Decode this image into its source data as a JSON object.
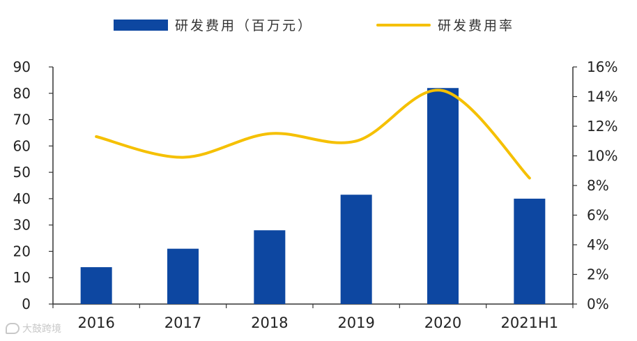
{
  "legend": {
    "bar_label": "研发费用（百万元）",
    "line_label": "研发费用率"
  },
  "watermark": {
    "text": "大鼓跨境",
    "icon": "speech-bubble-icon"
  },
  "colors": {
    "bar": "#0d47a1",
    "line": "#f5c000",
    "axis": "#333333"
  },
  "chart_data": {
    "type": "bar",
    "categories": [
      "2016",
      "2017",
      "2018",
      "2019",
      "2020",
      "2021H1"
    ],
    "series": [
      {
        "name": "研发费用（百万元）",
        "type": "bar",
        "axis": "left",
        "values": [
          14,
          21,
          28,
          41.5,
          82,
          40
        ]
      },
      {
        "name": "研发费用率",
        "type": "line",
        "axis": "right",
        "unit": "%",
        "values": [
          11.3,
          9.9,
          11.5,
          11.0,
          14.4,
          8.5
        ]
      }
    ],
    "y_left": {
      "ylim": [
        0,
        90
      ],
      "ticks": [
        "0",
        "10",
        "20",
        "30",
        "40",
        "50",
        "60",
        "70",
        "80",
        "90"
      ]
    },
    "y_right": {
      "ylim": [
        0,
        16
      ],
      "ticks": [
        "0%",
        "2%",
        "4%",
        "6%",
        "8%",
        "10%",
        "12%",
        "14%",
        "16%"
      ]
    },
    "title": "",
    "xlabel": "",
    "ylabel": "",
    "legend_position": "top",
    "grid": false
  }
}
